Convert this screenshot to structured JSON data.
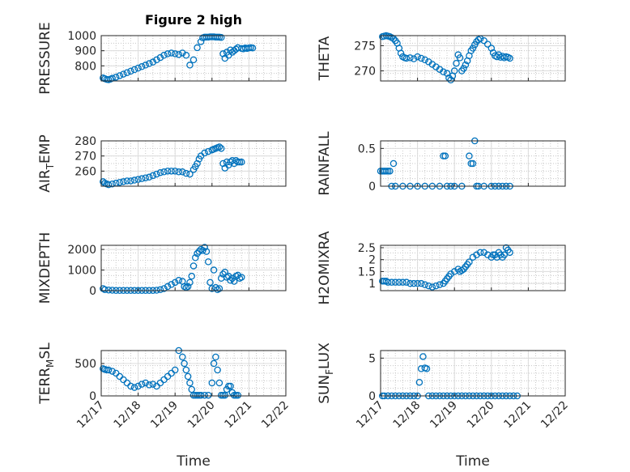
{
  "figure": {
    "title": "Figure 2 high"
  },
  "colors": {
    "marker": "#0072BD",
    "axis": "#262626",
    "background": "#ffffff"
  },
  "chart_data": [
    {
      "type": "scatter",
      "ylabel": "PRESSURE",
      "title": "Figure 2 high",
      "xlim": [
        0,
        5
      ],
      "ylim": [
        700,
        1000
      ],
      "yticks": [
        800,
        900,
        1000
      ],
      "xtick_labels": [],
      "grid": true,
      "series": [
        {
          "x": [
            0.05,
            0.1,
            0.15,
            0.2,
            0.25,
            0.3,
            0.4,
            0.5,
            0.6,
            0.7,
            0.8,
            0.9,
            1.0,
            1.1,
            1.2,
            1.3,
            1.4,
            1.5,
            1.6,
            1.7,
            1.8,
            1.9,
            2.0,
            2.1,
            2.2,
            2.3,
            2.4,
            2.5,
            2.6,
            2.7,
            2.75,
            2.8,
            2.85,
            2.9,
            2.95,
            3.0,
            3.05,
            3.1,
            3.15,
            3.2,
            3.25,
            3.3,
            3.35,
            3.4,
            3.45,
            3.5,
            3.55,
            3.6,
            3.65,
            3.7,
            3.8,
            3.85,
            3.9,
            3.95,
            4.0,
            4.05,
            4.1
          ],
          "y": [
            720,
            715,
            710,
            708,
            712,
            718,
            725,
            735,
            745,
            755,
            765,
            775,
            785,
            795,
            805,
            815,
            825,
            840,
            855,
            870,
            880,
            885,
            880,
            875,
            885,
            870,
            805,
            840,
            920,
            960,
            985,
            990,
            990,
            990,
            992,
            992,
            992,
            990,
            990,
            990,
            988,
            880,
            850,
            890,
            870,
            905,
            890,
            900,
            910,
            920,
            915,
            912,
            918,
            915,
            918,
            920,
            918
          ]
        }
      ]
    },
    {
      "type": "scatter",
      "ylabel": "THETA",
      "xlim": [
        0,
        5
      ],
      "ylim": [
        268,
        277
      ],
      "yticks": [
        270,
        275
      ],
      "xtick_labels": [],
      "grid": true,
      "series": [
        {
          "x": [
            0.05,
            0.1,
            0.15,
            0.2,
            0.25,
            0.3,
            0.35,
            0.4,
            0.45,
            0.5,
            0.55,
            0.6,
            0.65,
            0.7,
            0.8,
            0.9,
            1.0,
            1.1,
            1.2,
            1.3,
            1.4,
            1.5,
            1.6,
            1.7,
            1.8,
            1.85,
            1.9,
            1.95,
            2.0,
            2.05,
            2.1,
            2.15,
            2.2,
            2.25,
            2.3,
            2.35,
            2.4,
            2.45,
            2.5,
            2.55,
            2.6,
            2.65,
            2.7,
            2.8,
            2.9,
            3.0,
            3.05,
            3.1,
            3.15,
            3.2,
            3.25,
            3.3,
            3.35,
            3.4,
            3.45,
            3.5
          ],
          "y": [
            276.8,
            276.9,
            277.0,
            276.9,
            276.8,
            276.6,
            276.4,
            276.0,
            275.5,
            274.5,
            273.5,
            272.8,
            272.6,
            272.5,
            272.6,
            272.4,
            272.8,
            272.5,
            272.2,
            271.8,
            271.3,
            270.8,
            270.3,
            269.8,
            269.5,
            268.6,
            268.2,
            269.0,
            270.0,
            271.5,
            273.2,
            272.6,
            270.0,
            270.5,
            271.2,
            272.0,
            273.0,
            274.0,
            274.5,
            275.2,
            275.8,
            276.2,
            276.4,
            276.0,
            275.3,
            274.5,
            273.6,
            273.0,
            272.8,
            273.2,
            272.7,
            272.9,
            272.6,
            272.8,
            272.7,
            272.5
          ]
        }
      ]
    },
    {
      "type": "scatter",
      "ylabel": "AIR_TEMP",
      "xlim": [
        0,
        5
      ],
      "ylim": [
        250,
        280
      ],
      "yticks": [
        260,
        270,
        280
      ],
      "xtick_labels": [],
      "grid": true,
      "series": [
        {
          "x": [
            0.05,
            0.1,
            0.15,
            0.2,
            0.3,
            0.4,
            0.5,
            0.6,
            0.7,
            0.8,
            0.9,
            1.0,
            1.1,
            1.2,
            1.3,
            1.4,
            1.5,
            1.6,
            1.7,
            1.8,
            1.9,
            2.0,
            2.1,
            2.2,
            2.3,
            2.4,
            2.5,
            2.55,
            2.6,
            2.65,
            2.7,
            2.8,
            2.9,
            3.0,
            3.05,
            3.1,
            3.15,
            3.2,
            3.25,
            3.3,
            3.35,
            3.4,
            3.45,
            3.5,
            3.55,
            3.6,
            3.65,
            3.7,
            3.75,
            3.8
          ],
          "y": [
            253,
            252,
            251.5,
            251,
            251.5,
            252,
            252.5,
            253,
            253.5,
            253.5,
            254,
            254.5,
            255,
            255.5,
            256,
            257,
            258,
            259,
            259.5,
            260,
            260,
            260,
            259.5,
            259.5,
            258.5,
            258,
            261,
            263,
            265,
            268,
            270,
            272,
            273,
            274,
            274.5,
            275,
            275.5,
            276,
            275,
            265,
            262,
            266,
            264,
            266,
            267,
            265,
            267,
            266,
            266,
            266
          ]
        }
      ]
    },
    {
      "type": "scatter",
      "ylabel": "RAINFALL",
      "xlim": [
        0,
        5
      ],
      "ylim": [
        0,
        0.6
      ],
      "yticks": [
        0,
        0.5
      ],
      "xtick_labels": [],
      "grid": true,
      "series": [
        {
          "x": [
            0.0,
            0.05,
            0.1,
            0.15,
            0.2,
            0.25,
            0.3,
            0.4,
            0.6,
            0.8,
            1.0,
            1.2,
            1.4,
            1.6,
            1.7,
            1.75,
            1.8,
            1.9,
            2.0,
            2.2,
            2.4,
            2.45,
            2.5,
            2.55,
            2.6,
            2.65,
            2.8,
            3.0,
            3.1,
            3.2,
            3.3,
            3.4,
            3.5,
            0.35
          ],
          "y": [
            0.2,
            0.2,
            0.2,
            0.2,
            0.2,
            0.2,
            0.0,
            0.0,
            0.0,
            0.0,
            0.0,
            0.0,
            0.0,
            0.0,
            0.4,
            0.4,
            0.0,
            0.0,
            0.0,
            0.0,
            0.4,
            0.3,
            0.3,
            0.6,
            0.0,
            0.0,
            0.0,
            0.0,
            0.0,
            0.0,
            0.0,
            0.0,
            0.0,
            0.3
          ]
        }
      ]
    },
    {
      "type": "scatter",
      "ylabel": "MIXDEPTH",
      "xlim": [
        0,
        5
      ],
      "ylim": [
        0,
        2200
      ],
      "yticks": [
        0,
        1000,
        2000
      ],
      "xtick_labels": [],
      "grid": true,
      "series": [
        {
          "x": [
            0.05,
            0.1,
            0.2,
            0.3,
            0.4,
            0.5,
            0.6,
            0.7,
            0.8,
            0.9,
            1.0,
            1.1,
            1.2,
            1.3,
            1.4,
            1.5,
            1.6,
            1.7,
            1.8,
            1.9,
            2.0,
            2.1,
            2.2,
            2.25,
            2.3,
            2.35,
            2.4,
            2.45,
            2.5,
            2.55,
            2.6,
            2.65,
            2.7,
            2.75,
            2.8,
            2.85,
            2.9,
            2.95,
            3.0,
            3.05,
            3.1,
            3.15,
            3.2,
            3.25,
            3.3,
            3.35,
            3.4,
            3.45,
            3.5,
            3.55,
            3.6,
            3.65,
            3.7,
            3.75,
            3.8
          ],
          "y": [
            100,
            50,
            30,
            20,
            10,
            10,
            10,
            10,
            10,
            10,
            10,
            10,
            10,
            10,
            10,
            20,
            50,
            100,
            200,
            300,
            400,
            500,
            450,
            200,
            150,
            200,
            400,
            700,
            1200,
            1600,
            1800,
            1900,
            2000,
            1950,
            2100,
            1900,
            1400,
            400,
            100,
            1000,
            150,
            50,
            100,
            600,
            800,
            900,
            650,
            700,
            500,
            600,
            450,
            700,
            750,
            600,
            650
          ]
        }
      ]
    },
    {
      "type": "scatter",
      "ylabel": "H2OMIXRA",
      "xlim": [
        0,
        5
      ],
      "ylim": [
        0.7,
        2.6
      ],
      "yticks": [
        1,
        1.5,
        2,
        2.5
      ],
      "xtick_labels": [],
      "grid": true,
      "series": [
        {
          "x": [
            0.05,
            0.1,
            0.15,
            0.2,
            0.3,
            0.4,
            0.5,
            0.6,
            0.7,
            0.8,
            0.9,
            1.0,
            1.1,
            1.2,
            1.3,
            1.4,
            1.5,
            1.6,
            1.7,
            1.75,
            1.8,
            1.85,
            1.9,
            2.0,
            2.1,
            2.15,
            2.2,
            2.25,
            2.3,
            2.35,
            2.4,
            2.5,
            2.6,
            2.7,
            2.8,
            2.9,
            3.0,
            3.05,
            3.1,
            3.15,
            3.2,
            3.25,
            3.3,
            3.35,
            3.4,
            3.45,
            3.5
          ],
          "y": [
            1.1,
            1.1,
            1.1,
            1.05,
            1.05,
            1.05,
            1.05,
            1.05,
            1.05,
            1.0,
            1.0,
            1.0,
            1.0,
            0.95,
            0.9,
            0.85,
            0.9,
            0.95,
            1.0,
            1.1,
            1.2,
            1.3,
            1.4,
            1.5,
            1.6,
            1.5,
            1.55,
            1.6,
            1.7,
            1.8,
            1.9,
            2.1,
            2.2,
            2.3,
            2.3,
            2.2,
            2.1,
            2.2,
            2.2,
            2.1,
            2.3,
            2.2,
            2.1,
            2.2,
            2.5,
            2.4,
            2.3
          ]
        }
      ]
    },
    {
      "type": "scatter",
      "ylabel": "TERR_MSL",
      "xlim": [
        0,
        5
      ],
      "ylim": [
        0,
        700
      ],
      "yticks": [
        0,
        500
      ],
      "xtick_labels": [
        "12/17",
        "12/18",
        "12/19",
        "12/20",
        "12/21",
        "12/22"
      ],
      "xlabel": "Time",
      "grid": true,
      "series": [
        {
          "x": [
            0.05,
            0.1,
            0.15,
            0.2,
            0.3,
            0.4,
            0.5,
            0.6,
            0.7,
            0.8,
            0.9,
            1.0,
            1.1,
            1.2,
            1.3,
            1.4,
            1.5,
            1.6,
            1.7,
            1.8,
            1.9,
            2.0,
            2.1,
            2.2,
            2.25,
            2.3,
            2.35,
            2.4,
            2.45,
            2.5,
            2.55,
            2.6,
            2.65,
            2.7,
            2.8,
            2.9,
            3.0,
            3.05,
            3.1,
            3.15,
            3.2,
            3.25,
            3.3,
            3.35,
            3.4,
            3.45,
            3.5,
            3.55,
            3.6,
            3.65,
            3.7
          ],
          "y": [
            420,
            410,
            400,
            400,
            380,
            350,
            300,
            250,
            200,
            150,
            130,
            150,
            180,
            200,
            170,
            180,
            150,
            200,
            250,
            300,
            350,
            400,
            700,
            600,
            500,
            400,
            300,
            200,
            100,
            10,
            10,
            10,
            10,
            10,
            10,
            10,
            200,
            500,
            600,
            400,
            200,
            10,
            10,
            10,
            100,
            150,
            150,
            50,
            10,
            10,
            10
          ]
        }
      ]
    },
    {
      "type": "scatter",
      "ylabel": "SUN_FLUX",
      "xlim": [
        0,
        5
      ],
      "ylim": [
        0,
        6
      ],
      "yticks": [
        0,
        5
      ],
      "xtick_labels": [
        "12/17",
        "12/18",
        "12/19",
        "12/20",
        "12/21",
        "12/22"
      ],
      "xlabel": "Time",
      "grid": true,
      "series": [
        {
          "x": [
            0.05,
            0.1,
            0.2,
            0.3,
            0.4,
            0.5,
            0.6,
            0.7,
            0.8,
            0.9,
            1.0,
            1.05,
            1.1,
            1.15,
            1.2,
            1.25,
            1.3,
            1.4,
            1.5,
            1.6,
            1.7,
            1.8,
            1.9,
            2.0,
            2.1,
            2.2,
            2.3,
            2.4,
            2.5,
            2.6,
            2.7,
            2.8,
            2.9,
            3.0,
            3.1,
            3.2,
            3.3,
            3.4,
            3.5,
            3.6,
            3.7
          ],
          "y": [
            0,
            0,
            0,
            0,
            0,
            0,
            0,
            0,
            0,
            0,
            0,
            1.8,
            3.6,
            5.2,
            3.7,
            3.6,
            0,
            0,
            0,
            0,
            0,
            0,
            0,
            0,
            0,
            0,
            0,
            0,
            0,
            0,
            0,
            0,
            0,
            0,
            0,
            0,
            0,
            0,
            0,
            0,
            0
          ]
        }
      ]
    }
  ]
}
